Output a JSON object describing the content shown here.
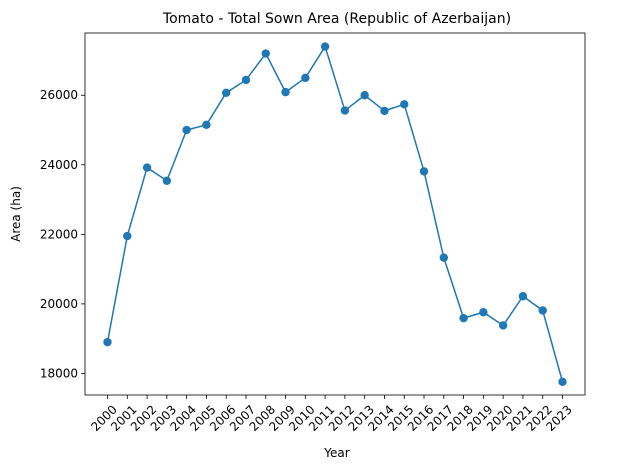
{
  "chart_data": {
    "type": "line",
    "title": "Tomato - Total Sown Area (Republic of Azerbaijan)",
    "xlabel": "Year",
    "ylabel": "Area (ha)",
    "x": [
      "2000",
      "2001",
      "2002",
      "2003",
      "2004",
      "2005",
      "2006",
      "2007",
      "2008",
      "2009",
      "2010",
      "2011",
      "2012",
      "2013",
      "2014",
      "2015",
      "2016",
      "2017",
      "2018",
      "2019",
      "2020",
      "2021",
      "2022",
      "2023"
    ],
    "series": [
      {
        "values": [
          18900,
          21950,
          23920,
          23540,
          25000,
          25150,
          26070,
          26440,
          27200,
          26090,
          26500,
          27400,
          25560,
          26000,
          25550,
          25740,
          23810,
          21330,
          19590,
          19760,
          19380,
          20220,
          19810,
          17760
        ]
      }
    ],
    "yticks": [
      18000,
      20000,
      22000,
      24000,
      26000
    ],
    "ylim": [
      17380,
      27790
    ],
    "grid": false,
    "legend": "none",
    "colors": {
      "line": "#1f77b4",
      "marker": "#1f77b4",
      "axis": "#000000"
    }
  }
}
